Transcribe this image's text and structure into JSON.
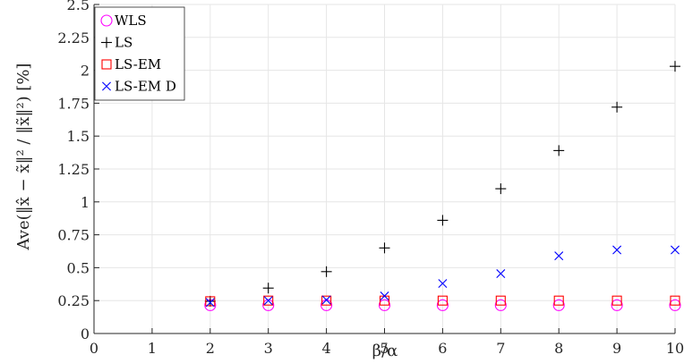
{
  "chart_data": {
    "type": "scatter",
    "x_ticks": [
      "0",
      "1",
      "2",
      "3",
      "4",
      "5",
      "6",
      "7",
      "8",
      "9",
      "10"
    ],
    "y_ticks": [
      "0",
      "0.25",
      "0.5",
      "0.75",
      "1",
      "1.25",
      "1.5",
      "1.75",
      "2",
      "2.25",
      "2.5"
    ],
    "xlim": [
      0,
      10
    ],
    "ylim": [
      0,
      2.5
    ],
    "xlabel": "β/α",
    "ylabel": "Ave(‖x̂ − x̃‖² / ‖x̃‖²) [%]",
    "grid": true,
    "legend_position": "top-left",
    "x": [
      2,
      3,
      4,
      5,
      6,
      7,
      8,
      9,
      10
    ],
    "series": [
      {
        "name": "WLS",
        "marker": "circle",
        "color": "#ff00ff",
        "values": [
          0.215,
          0.215,
          0.215,
          0.215,
          0.215,
          0.215,
          0.215,
          0.215,
          0.215
        ]
      },
      {
        "name": "LS",
        "marker": "plus",
        "color": "#000000",
        "values": [
          0.245,
          0.345,
          0.47,
          0.65,
          0.86,
          1.1,
          1.39,
          1.72,
          2.03
        ]
      },
      {
        "name": "LS-EM",
        "marker": "square",
        "color": "#ff0000",
        "values": [
          0.245,
          0.25,
          0.25,
          0.25,
          0.25,
          0.25,
          0.25,
          0.25,
          0.25
        ]
      },
      {
        "name": "LS-EM D",
        "marker": "x",
        "color": "#0000ff",
        "values": [
          0.235,
          0.25,
          0.255,
          0.285,
          0.38,
          0.455,
          0.59,
          0.635,
          0.635
        ]
      }
    ]
  }
}
